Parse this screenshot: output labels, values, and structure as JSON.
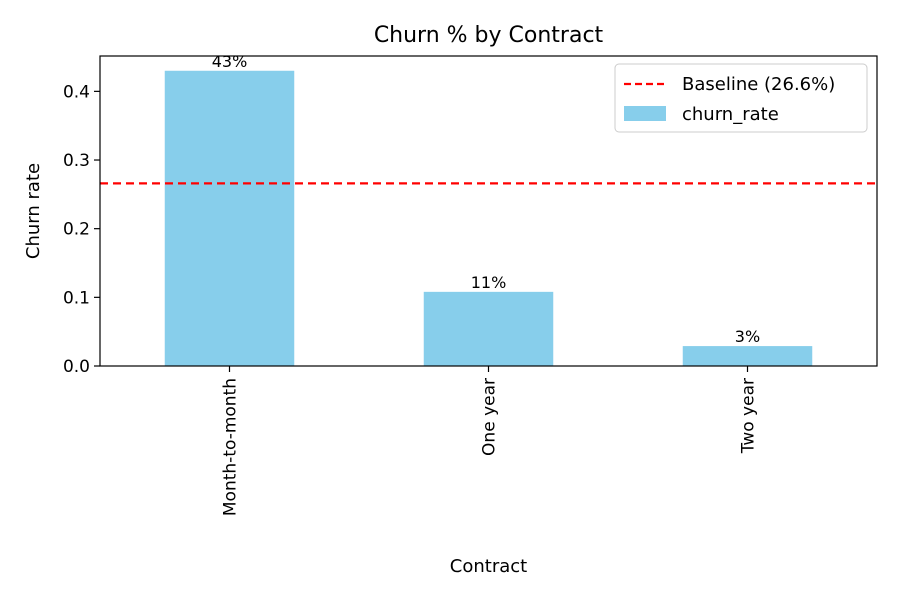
{
  "chart_data": {
    "type": "bar",
    "title": "Churn % by Contract",
    "xlabel": "Contract",
    "ylabel": "Churn rate",
    "categories": [
      "Month-to-month",
      "One year",
      "Two year"
    ],
    "series": [
      {
        "name": "churn_rate",
        "values": [
          0.43,
          0.108,
          0.029
        ],
        "labels": [
          "43%",
          "11%",
          "3%"
        ],
        "color": "#87CEEB"
      }
    ],
    "baseline": {
      "name": "Baseline (26.6%)",
      "value": 0.266,
      "color": "#ff0000",
      "style": "dashed"
    },
    "ylim": [
      0,
      0.4515
    ],
    "yticks": [
      0.0,
      0.1,
      0.2,
      0.3,
      0.4
    ],
    "ytick_labels": [
      "0.0",
      "0.1",
      "0.2",
      "0.3",
      "0.4"
    ],
    "grid": false,
    "legend_position": "top-right"
  }
}
